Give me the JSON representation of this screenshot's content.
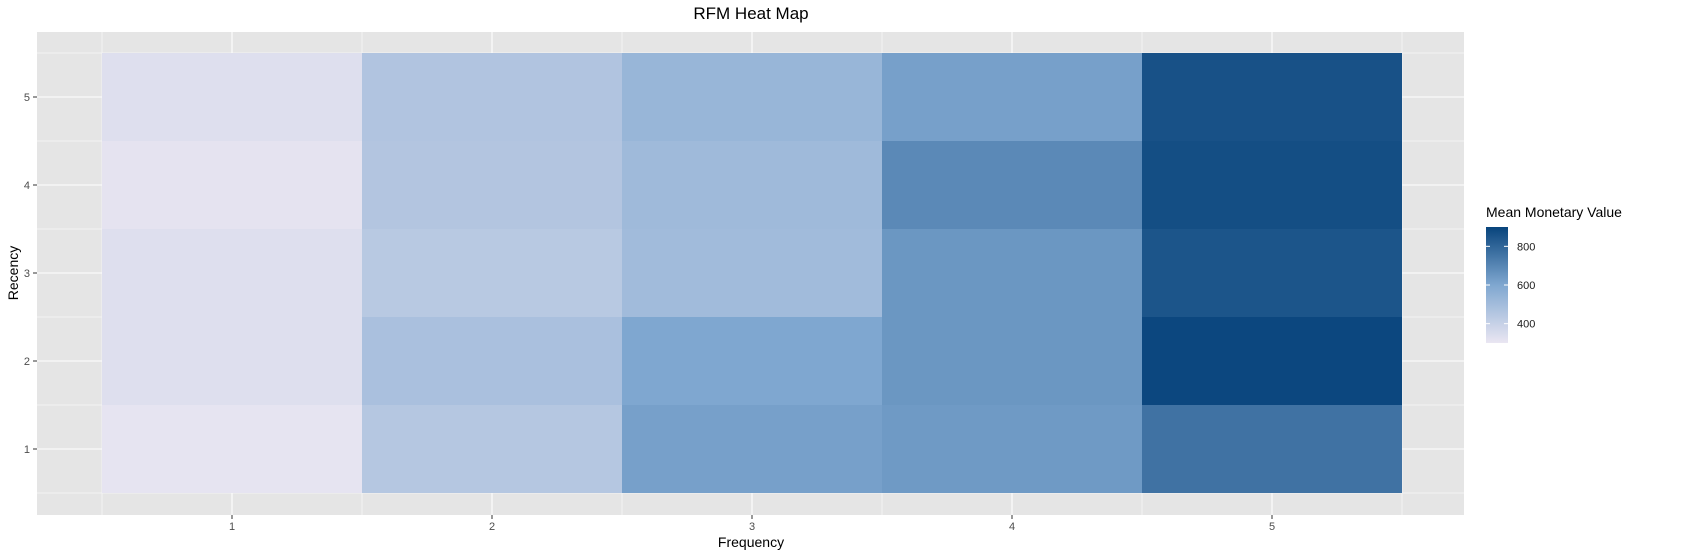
{
  "chart_data": {
    "type": "heatmap",
    "title": "RFM Heat Map",
    "xlabel": "Frequency",
    "ylabel": "Recency",
    "x_categories": [
      "1",
      "2",
      "3",
      "4",
      "5"
    ],
    "y_categories": [
      "1",
      "2",
      "3",
      "4",
      "5"
    ],
    "values_by_recency": [
      [
        310,
        450,
        620,
        640,
        760
      ],
      [
        335,
        480,
        600,
        650,
        890
      ],
      [
        335,
        440,
        505,
        650,
        850
      ],
      [
        315,
        455,
        510,
        690,
        870
      ],
      [
        335,
        460,
        530,
        620,
        860
      ]
    ],
    "legend": {
      "title": "Mean Monetary Value",
      "breaks": [
        400,
        600,
        800
      ],
      "range": [
        300,
        900
      ],
      "colors": [
        "#eae6f2",
        "#7fa7d0",
        "#08447c"
      ],
      "position": "right"
    },
    "panel_background": "#e5e5e5",
    "grid_color": "#ffffff",
    "grid": true
  }
}
